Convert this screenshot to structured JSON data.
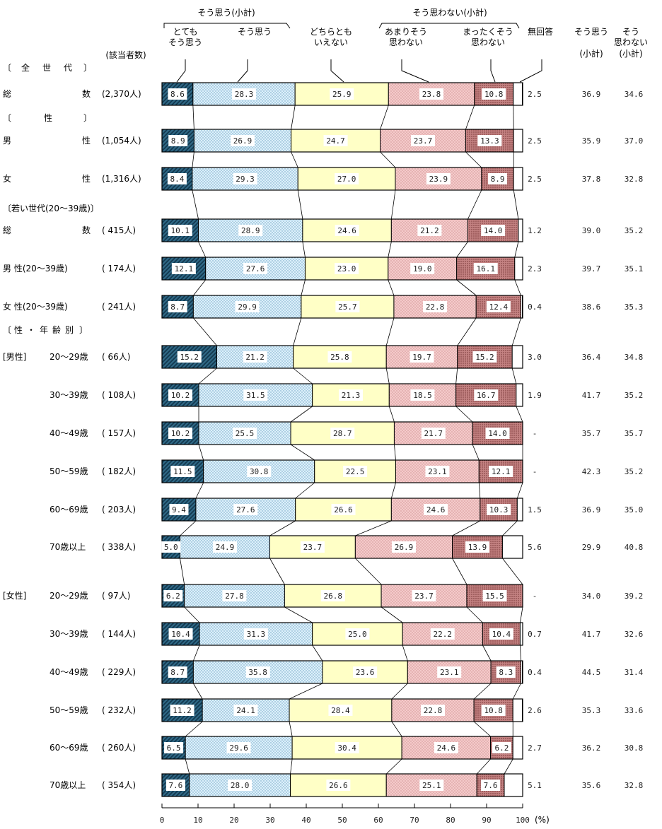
{
  "chart_data": {
    "type": "bar",
    "orientation": "horizontal-stacked-100",
    "header": {
      "group_agree": "そう思う(小計)",
      "group_disagree": "そう思わない(小計)",
      "sub_strongly_agree": [
        "とても",
        "そう思う"
      ],
      "sub_agree": "そう思う",
      "sub_neutral": [
        "どちらとも",
        "いえない"
      ],
      "sub_disagree": [
        "あまりそう",
        "思わない"
      ],
      "sub_strongly_disagree": [
        "まったくそう",
        "思わない"
      ],
      "sub_no_answer": "無回答",
      "col_agree_total": [
        "そう思う",
        "(小計)"
      ],
      "col_disagree_total": [
        "そう",
        "思わない",
        "(小計)"
      ],
      "count_header": "(該当者数)"
    },
    "colors": {
      "strongly_agree": "#2a5d78",
      "agree": "#d6ecf8",
      "neutral": "#ffffc8",
      "disagree": "#f2c8c8",
      "strongly_disagree": "#c88888",
      "no_answer": "#ffffff"
    },
    "series_names": [
      "とてもそう思う",
      "そう思う",
      "どちらともいえない",
      "あまりそう思わない",
      "まったくそう思わない",
      "無回答"
    ],
    "axis": {
      "min": 0,
      "max": 100,
      "ticks": [
        "0",
        "10",
        "20",
        "30",
        "40",
        "50",
        "60",
        "70",
        "80",
        "90",
        "100"
      ],
      "unit": "(%)"
    },
    "sections": [
      {
        "title": [
          "〔",
          "全",
          "世",
          "代",
          "〕"
        ]
      },
      {
        "title": [
          "〔",
          "性",
          "〕"
        ]
      },
      {
        "title": [
          "〔若い世代(20～39歳)〕"
        ]
      },
      {
        "title": [
          "〔",
          "性",
          "・",
          "年",
          "齢",
          "別",
          "〕"
        ]
      }
    ],
    "rows": [
      {
        "label_a": "総",
        "label_b": "数",
        "group_tag": "",
        "count": "(2,370人)",
        "values": [
          8.6,
          28.3,
          25.9,
          23.8,
          10.8,
          2.5
        ],
        "value_labels": [
          "8.6",
          "28.3",
          "25.9",
          "23.8",
          "10.8",
          "2.5"
        ],
        "agree_total": "36.9",
        "disagree_total": "34.6"
      },
      {
        "label_a": "男",
        "label_b": "性",
        "group_tag": "",
        "count": "(1,054人)",
        "values": [
          8.9,
          26.9,
          24.7,
          23.7,
          13.3,
          2.5
        ],
        "value_labels": [
          "8.9",
          "26.9",
          "24.7",
          "23.7",
          "13.3",
          "2.5"
        ],
        "agree_total": "35.9",
        "disagree_total": "37.0"
      },
      {
        "label_a": "女",
        "label_b": "性",
        "group_tag": "",
        "count": "(1,316人)",
        "values": [
          8.4,
          29.3,
          27.0,
          23.9,
          8.9,
          2.5
        ],
        "value_labels": [
          "8.4",
          "29.3",
          "27.0",
          "23.9",
          "8.9",
          "2.5"
        ],
        "agree_total": "37.8",
        "disagree_total": "32.8"
      },
      {
        "label_a": "総",
        "label_b": "数",
        "group_tag": "",
        "count": "( 415人)",
        "values": [
          10.1,
          28.9,
          24.6,
          21.2,
          14.0,
          1.2
        ],
        "value_labels": [
          "10.1",
          "28.9",
          "24.6",
          "21.2",
          "14.0",
          "1.2"
        ],
        "agree_total": "39.0",
        "disagree_total": "35.2"
      },
      {
        "label_a": "男 性(20～39歳)",
        "label_b": "",
        "group_tag": "",
        "count": "( 174人)",
        "values": [
          12.1,
          27.6,
          23.0,
          19.0,
          16.1,
          2.3
        ],
        "value_labels": [
          "12.1",
          "27.6",
          "23.0",
          "19.0",
          "16.1",
          "2.3"
        ],
        "agree_total": "39.7",
        "disagree_total": "35.1"
      },
      {
        "label_a": "女 性(20～39歳)",
        "label_b": "",
        "group_tag": "",
        "count": "( 241人)",
        "values": [
          8.7,
          29.9,
          25.7,
          22.8,
          12.4,
          0.4
        ],
        "value_labels": [
          "8.7",
          "29.9",
          "25.7",
          "22.8",
          "12.4",
          "0.4"
        ],
        "agree_total": "38.6",
        "disagree_total": "35.3"
      },
      {
        "label_a": "20～29歳",
        "label_b": "",
        "group_tag": "[男性]",
        "count": "(  66人)",
        "values": [
          15.2,
          21.2,
          25.8,
          19.7,
          15.2,
          3.0
        ],
        "value_labels": [
          "15.2",
          "21.2",
          "25.8",
          "19.7",
          "15.2",
          "3.0"
        ],
        "agree_total": "36.4",
        "disagree_total": "34.8"
      },
      {
        "label_a": "30～39歳",
        "label_b": "",
        "group_tag": "",
        "count": "( 108人)",
        "values": [
          10.2,
          31.5,
          21.3,
          18.5,
          16.7,
          1.9
        ],
        "value_labels": [
          "10.2",
          "31.5",
          "21.3",
          "18.5",
          "16.7",
          "1.9"
        ],
        "agree_total": "41.7",
        "disagree_total": "35.2"
      },
      {
        "label_a": "40～49歳",
        "label_b": "",
        "group_tag": "",
        "count": "( 157人)",
        "values": [
          10.2,
          25.5,
          28.7,
          21.7,
          14.0,
          0
        ],
        "value_labels": [
          "10.2",
          "25.5",
          "28.7",
          "21.7",
          "14.0",
          "-"
        ],
        "agree_total": "35.7",
        "disagree_total": "35.7"
      },
      {
        "label_a": "50～59歳",
        "label_b": "",
        "group_tag": "",
        "count": "( 182人)",
        "values": [
          11.5,
          30.8,
          22.5,
          23.1,
          12.1,
          0
        ],
        "value_labels": [
          "11.5",
          "30.8",
          "22.5",
          "23.1",
          "12.1",
          "-"
        ],
        "agree_total": "42.3",
        "disagree_total": "35.2"
      },
      {
        "label_a": "60～69歳",
        "label_b": "",
        "group_tag": "",
        "count": "( 203人)",
        "values": [
          9.4,
          27.6,
          26.6,
          24.6,
          10.3,
          1.5
        ],
        "value_labels": [
          "9.4",
          "27.6",
          "26.6",
          "24.6",
          "10.3",
          "1.5"
        ],
        "agree_total": "36.9",
        "disagree_total": "35.0"
      },
      {
        "label_a": "70歳以上",
        "label_b": "",
        "group_tag": "",
        "count": "( 338人)",
        "values": [
          5.0,
          24.9,
          23.7,
          26.9,
          13.9,
          5.6
        ],
        "value_labels": [
          "5.0",
          "24.9",
          "23.7",
          "26.9",
          "13.9",
          "5.6"
        ],
        "agree_total": "29.9",
        "disagree_total": "40.8"
      },
      {
        "label_a": "20～29歳",
        "label_b": "",
        "group_tag": "[女性]",
        "count": "(  97人)",
        "values": [
          6.2,
          27.8,
          26.8,
          23.7,
          15.5,
          0
        ],
        "value_labels": [
          "6.2",
          "27.8",
          "26.8",
          "23.7",
          "15.5",
          "-"
        ],
        "agree_total": "34.0",
        "disagree_total": "39.2"
      },
      {
        "label_a": "30～39歳",
        "label_b": "",
        "group_tag": "",
        "count": "( 144人)",
        "values": [
          10.4,
          31.3,
          25.0,
          22.2,
          10.4,
          0.7
        ],
        "value_labels": [
          "10.4",
          "31.3",
          "25.0",
          "22.2",
          "10.4",
          "0.7"
        ],
        "agree_total": "41.7",
        "disagree_total": "32.6"
      },
      {
        "label_a": "40～49歳",
        "label_b": "",
        "group_tag": "",
        "count": "( 229人)",
        "values": [
          8.7,
          35.8,
          23.6,
          23.1,
          8.3,
          0.4
        ],
        "value_labels": [
          "8.7",
          "35.8",
          "23.6",
          "23.1",
          "8.3",
          "0.4"
        ],
        "agree_total": "44.5",
        "disagree_total": "31.4"
      },
      {
        "label_a": "50～59歳",
        "label_b": "",
        "group_tag": "",
        "count": "( 232人)",
        "values": [
          11.2,
          24.1,
          28.4,
          22.8,
          10.8,
          2.6
        ],
        "value_labels": [
          "11.2",
          "24.1",
          "28.4",
          "22.8",
          "10.8",
          "2.6"
        ],
        "agree_total": "35.3",
        "disagree_total": "33.6"
      },
      {
        "label_a": "60～69歳",
        "label_b": "",
        "group_tag": "",
        "count": "( 260人)",
        "values": [
          6.5,
          29.6,
          30.4,
          24.6,
          6.2,
          2.7
        ],
        "value_labels": [
          "6.5",
          "29.6",
          "30.4",
          "24.6",
          "6.2",
          "2.7"
        ],
        "agree_total": "36.2",
        "disagree_total": "30.8"
      },
      {
        "label_a": "70歳以上",
        "label_b": "",
        "group_tag": "",
        "count": "( 354人)",
        "values": [
          7.6,
          28.0,
          26.6,
          25.1,
          7.6,
          5.1
        ],
        "value_labels": [
          "7.6",
          "28.0",
          "26.6",
          "25.1",
          "7.6",
          "5.1"
        ],
        "agree_total": "35.6",
        "disagree_total": "32.8"
      }
    ]
  }
}
